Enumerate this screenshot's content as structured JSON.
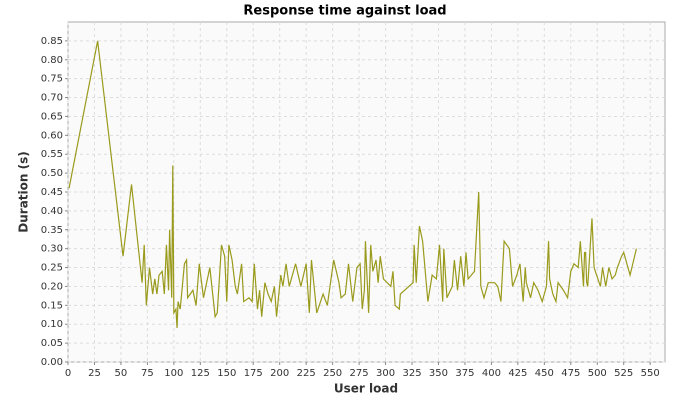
{
  "chart_data": {
    "type": "line",
    "title": "Response time against load",
    "xlabel": "User load",
    "ylabel": "Duration (s)",
    "x": [
      1,
      28,
      52,
      60,
      70,
      72,
      74,
      77,
      80,
      82,
      84,
      86,
      89,
      91,
      93,
      95,
      96,
      98,
      99,
      100,
      102,
      103,
      104,
      106,
      110,
      112,
      113,
      118,
      121,
      124,
      128,
      134,
      139,
      141,
      145,
      148,
      150,
      152,
      155,
      158,
      160,
      164,
      166,
      171,
      174,
      176,
      179,
      181,
      183,
      186,
      189,
      192,
      195,
      197,
      201,
      203,
      206,
      209,
      215,
      220,
      225,
      228,
      230,
      235,
      241,
      245,
      251,
      256,
      258,
      262,
      265,
      269,
      273,
      276,
      278,
      280,
      281,
      284,
      286,
      288,
      291,
      293,
      295,
      298,
      305,
      307,
      309,
      313,
      314,
      326,
      327,
      329,
      332,
      335,
      340,
      344,
      348,
      351,
      354,
      355,
      358,
      363,
      365,
      368,
      371,
      374,
      376,
      378,
      384,
      388,
      390,
      393,
      397,
      403,
      406,
      409,
      412,
      417,
      420,
      424,
      427,
      430,
      432,
      433,
      437,
      440,
      444,
      448,
      452,
      454,
      455,
      458,
      461,
      463,
      468,
      472,
      475,
      478,
      482,
      484,
      487,
      488,
      489,
      490,
      491,
      495,
      497,
      503,
      505,
      508,
      511,
      514,
      517,
      519,
      523,
      525,
      529,
      531,
      537
    ],
    "series": [
      {
        "color": "#9a9a1c",
        "values": [
          0.46,
          0.85,
          0.28,
          0.47,
          0.21,
          0.31,
          0.15,
          0.25,
          0.18,
          0.22,
          0.18,
          0.23,
          0.24,
          0.18,
          0.31,
          0.19,
          0.35,
          0.17,
          0.52,
          0.13,
          0.14,
          0.09,
          0.16,
          0.14,
          0.26,
          0.27,
          0.17,
          0.19,
          0.15,
          0.26,
          0.17,
          0.25,
          0.12,
          0.13,
          0.31,
          0.28,
          0.16,
          0.31,
          0.27,
          0.2,
          0.18,
          0.26,
          0.16,
          0.17,
          0.16,
          0.26,
          0.14,
          0.19,
          0.12,
          0.21,
          0.18,
          0.16,
          0.2,
          0.12,
          0.23,
          0.2,
          0.26,
          0.2,
          0.26,
          0.2,
          0.26,
          0.13,
          0.27,
          0.13,
          0.18,
          0.15,
          0.27,
          0.21,
          0.17,
          0.18,
          0.26,
          0.16,
          0.25,
          0.26,
          0.14,
          0.19,
          0.32,
          0.13,
          0.31,
          0.24,
          0.27,
          0.21,
          0.28,
          0.22,
          0.2,
          0.24,
          0.15,
          0.14,
          0.18,
          0.21,
          0.31,
          0.21,
          0.36,
          0.32,
          0.16,
          0.23,
          0.22,
          0.31,
          0.16,
          0.3,
          0.17,
          0.2,
          0.27,
          0.19,
          0.28,
          0.2,
          0.29,
          0.22,
          0.24,
          0.45,
          0.2,
          0.17,
          0.21,
          0.21,
          0.2,
          0.16,
          0.32,
          0.3,
          0.2,
          0.23,
          0.26,
          0.16,
          0.25,
          0.21,
          0.17,
          0.21,
          0.19,
          0.16,
          0.2,
          0.32,
          0.22,
          0.18,
          0.16,
          0.21,
          0.19,
          0.17,
          0.24,
          0.26,
          0.25,
          0.32,
          0.2,
          0.29,
          0.29,
          0.21,
          0.2,
          0.38,
          0.25,
          0.2,
          0.25,
          0.2,
          0.25,
          0.22,
          0.23,
          0.25,
          0.28,
          0.29,
          0.25,
          0.23,
          0.3
        ]
      }
    ],
    "xlim": [
      0,
      564
    ],
    "ylim": [
      0,
      0.9
    ],
    "xticks": [
      0,
      25,
      50,
      75,
      100,
      125,
      150,
      175,
      200,
      225,
      250,
      275,
      300,
      325,
      350,
      375,
      400,
      425,
      450,
      475,
      500,
      525,
      550
    ],
    "yticks": [
      {
        "value": 0,
        "label": "0.00"
      },
      {
        "value": 0.05,
        "label": "0.05"
      },
      {
        "value": 0.1,
        "label": "0.10"
      },
      {
        "value": 0.15,
        "label": "0.15"
      },
      {
        "value": 0.2,
        "label": "0.20"
      },
      {
        "value": 0.25,
        "label": "0.25"
      },
      {
        "value": 0.3,
        "label": "0.30"
      },
      {
        "value": 0.35,
        "label": "0.35"
      },
      {
        "value": 0.4,
        "label": "0.40"
      },
      {
        "value": 0.45,
        "label": "0.45"
      },
      {
        "value": 0.5,
        "label": "0.50"
      },
      {
        "value": 0.55,
        "label": "0.55"
      },
      {
        "value": 0.6,
        "label": "0.60"
      },
      {
        "value": 0.65,
        "label": "0.65"
      },
      {
        "value": 0.7,
        "label": "0.70"
      },
      {
        "value": 0.75,
        "label": "0.75"
      },
      {
        "value": 0.8,
        "label": "0.80"
      },
      {
        "value": 0.85,
        "label": "0.85"
      }
    ],
    "grid": true
  }
}
